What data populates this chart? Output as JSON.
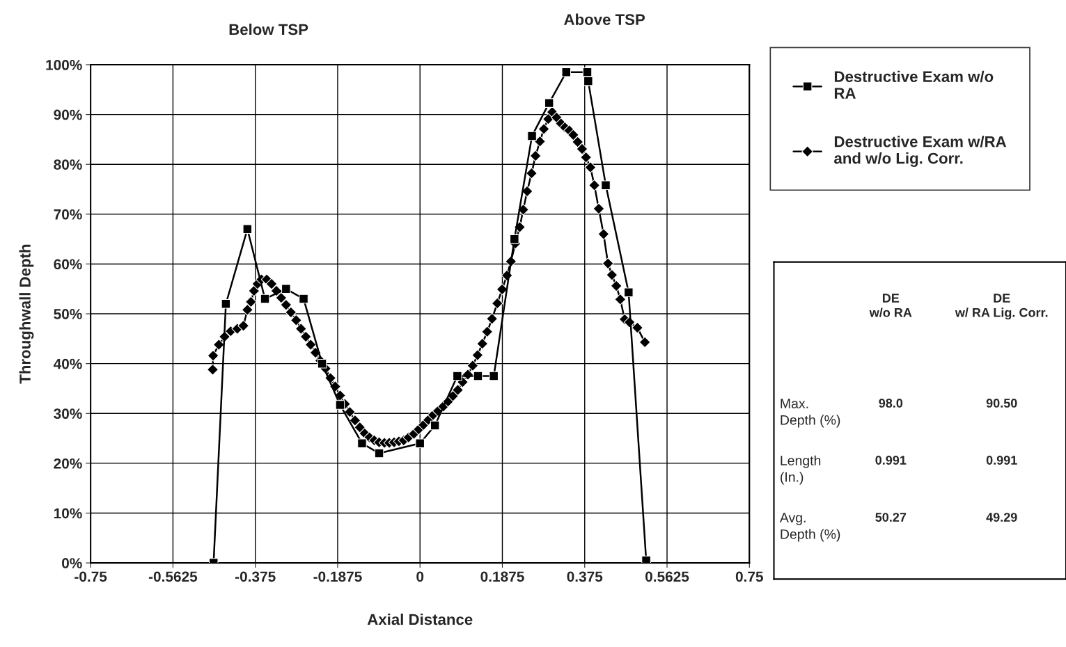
{
  "chart_data": [
    {
      "type": "line",
      "xlabel": "Axial Distance",
      "ylabel": "Throughwall Depth",
      "annotations": [
        "Below TSP",
        "Above TSP"
      ],
      "xlim": [
        -0.75,
        0.75
      ],
      "xticks": [
        -0.75,
        -0.5625,
        -0.375,
        -0.1875,
        0,
        0.1875,
        0.375,
        0.5625,
        0.75
      ],
      "ylim": [
        0,
        100
      ],
      "yticks": [
        {
          "value": 0,
          "label": "0%"
        },
        {
          "value": 10,
          "label": "10%"
        },
        {
          "value": 20,
          "label": "20%"
        },
        {
          "value": 30,
          "label": "30%"
        },
        {
          "value": 40,
          "label": "40%"
        },
        {
          "value": 50,
          "label": "50%"
        },
        {
          "value": 60,
          "label": "60%"
        },
        {
          "value": 70,
          "label": "70%"
        },
        {
          "value": 80,
          "label": "80%"
        },
        {
          "value": 90,
          "label": "90%"
        },
        {
          "value": 100,
          "label": "100%"
        }
      ],
      "grid": true,
      "legend": "top right",
      "line_style": "solid",
      "series": [
        {
          "name": "Destructive Exam w/o\nRA",
          "color": "#000000",
          "marker": "square",
          "x": [
            -0.47,
            -0.442,
            -0.393,
            -0.353,
            -0.305,
            -0.265,
            -0.223,
            -0.182,
            -0.132,
            -0.093,
            0,
            0.034,
            0.085,
            0.132,
            0.168,
            0.215,
            0.255,
            0.294,
            0.333,
            0.381,
            0.383,
            0.423,
            0.475,
            0.515
          ],
          "values": [
            0,
            52,
            67,
            53,
            55,
            53,
            40,
            31.7,
            24,
            22,
            24,
            27.6,
            37.5,
            37.5,
            37.5,
            65,
            85.7,
            92.3,
            98.5,
            98.5,
            96.7,
            75.8,
            54.3,
            0.5
          ]
        },
        {
          "name": "Destructive Exam w/RA\nand w/o Lig. Corr.",
          "color": "#000000",
          "marker": "diamond",
          "x": [
            -0.472,
            -0.471,
            -0.458,
            -0.445,
            -0.431,
            -0.416,
            -0.402,
            -0.393,
            -0.385,
            -0.378,
            -0.37,
            -0.361,
            -0.349,
            -0.338,
            -0.327,
            -0.316,
            -0.305,
            -0.294,
            -0.282,
            -0.271,
            -0.26,
            -0.249,
            -0.238,
            -0.227,
            -0.215,
            -0.204,
            -0.193,
            -0.182,
            -0.171,
            -0.16,
            -0.148,
            -0.137,
            -0.126,
            -0.115,
            -0.104,
            -0.093,
            -0.081,
            -0.07,
            -0.059,
            -0.048,
            -0.037,
            -0.026,
            -0.014,
            -0.003,
            0.008,
            0.019,
            0.03,
            0.041,
            0.053,
            0.064,
            0.075,
            0.086,
            0.097,
            0.109,
            0.12,
            0.131,
            0.142,
            0.153,
            0.164,
            0.176,
            0.187,
            0.198,
            0.207,
            0.217,
            0.227,
            0.235,
            0.244,
            0.254,
            0.263,
            0.273,
            0.282,
            0.292,
            0.301,
            0.311,
            0.321,
            0.33,
            0.34,
            0.349,
            0.359,
            0.369,
            0.378,
            0.388,
            0.397,
            0.407,
            0.418,
            0.428,
            0.437,
            0.447,
            0.456,
            0.466,
            0.477,
            0.495,
            0.512
          ],
          "values": [
            38.8,
            41.6,
            43.8,
            45.4,
            46.5,
            47,
            47.6,
            50.8,
            52.4,
            54.6,
            56,
            56.9,
            56.9,
            56,
            54.6,
            53.2,
            51.8,
            50.3,
            48.7,
            47,
            45.4,
            43.8,
            42.2,
            40.6,
            39,
            37.1,
            35.4,
            33.6,
            31.9,
            30.3,
            28.6,
            27.2,
            26,
            25.2,
            24.6,
            24.2,
            24.1,
            24.1,
            24.2,
            24.4,
            24.6,
            25.2,
            25.9,
            26.8,
            27.7,
            28.7,
            29.7,
            30.5,
            31.4,
            32.4,
            33.5,
            34.7,
            36.3,
            37.8,
            39.6,
            41.7,
            44,
            46.4,
            49,
            52.1,
            54.9,
            57.7,
            60.5,
            64.1,
            67.4,
            70.9,
            74.6,
            78.2,
            81.7,
            84.6,
            87.1,
            89.1,
            90.5,
            89.4,
            88.2,
            87.4,
            86.8,
            85.9,
            84.5,
            83.1,
            81.4,
            79.4,
            75.8,
            71.1,
            66,
            60.1,
            57.8,
            55.6,
            52.9,
            48.9,
            48.3,
            47.2,
            44.3
          ]
        }
      ]
    },
    {
      "type": "other",
      "annotations": [
        "DE\nw/o RA",
        "DE\nw/ RA Lig. Corr.",
        "Max.\nDepth (%)",
        "98.0",
        "90.50",
        "Length\n(In.)",
        "0.991",
        "0.991",
        "Avg.\nDepth (%)",
        "50.27",
        "49.29"
      ]
    }
  ]
}
